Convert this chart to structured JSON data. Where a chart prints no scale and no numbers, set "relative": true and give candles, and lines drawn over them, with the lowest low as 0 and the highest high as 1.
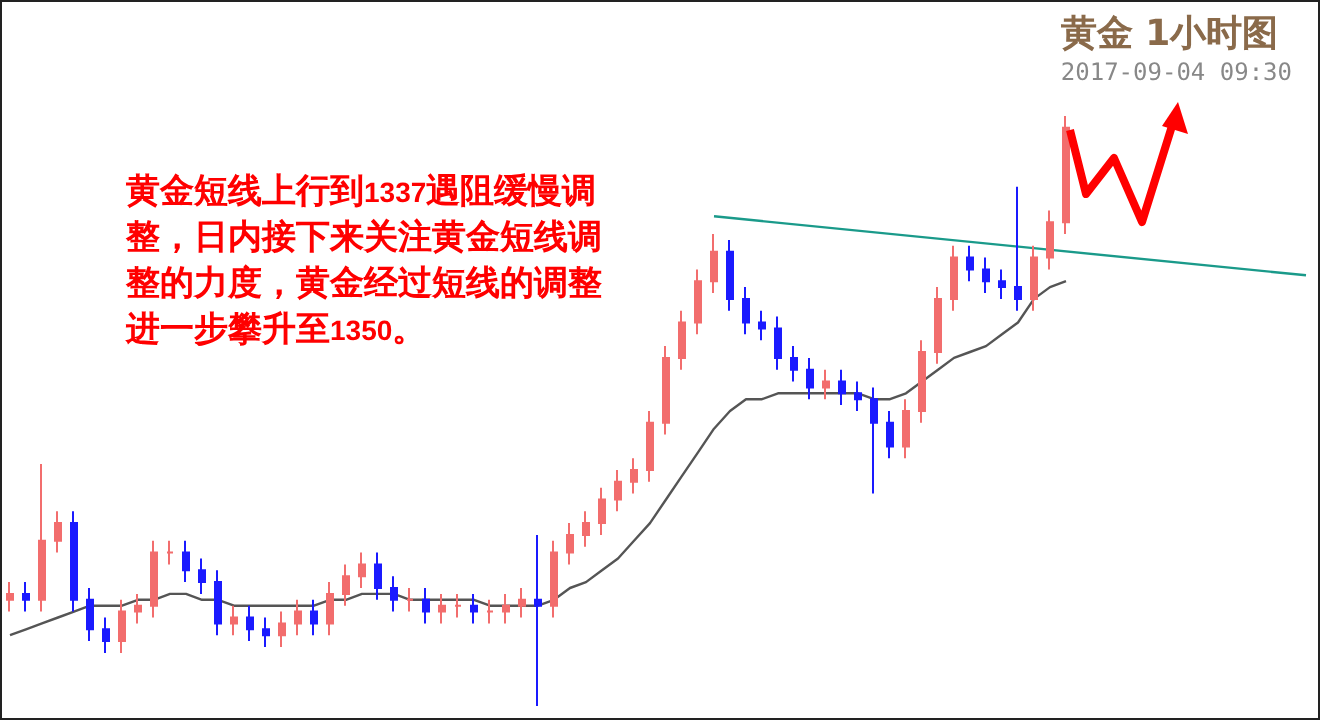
{
  "chart_data": {
    "type": "candlestick",
    "title": "黄金 1小时图",
    "subtitle": "2017-09-04 09:30",
    "relative": true,
    "annotations": [
      "黄金短线上行到1337遇阻缓慢调整，日内接下来关注黄金短线调整的力度，黄金经过短线的调整进一步攀升至1350。"
    ],
    "categories": [
      null,
      null,
      null,
      null,
      null,
      null,
      null,
      null,
      null,
      null,
      null,
      null,
      null,
      null,
      null,
      null,
      null,
      null,
      null,
      null,
      null,
      null,
      null,
      null,
      null,
      null,
      null,
      null,
      null,
      null,
      null,
      null,
      null,
      null,
      null,
      null,
      null,
      null,
      null,
      null,
      null,
      null,
      null,
      null,
      null,
      null,
      null,
      null,
      null,
      null,
      null,
      null,
      null,
      null,
      null,
      null,
      null,
      null,
      null,
      null,
      null,
      null,
      null,
      null,
      null,
      null,
      null,
      null,
      null,
      null,
      null,
      null,
      null,
      null,
      null,
      null,
      null,
      null,
      null,
      null,
      null,
      null
    ],
    "ohlc": [
      [
        0.18,
        0.21,
        0.16,
        0.19
      ],
      [
        0.19,
        0.21,
        0.16,
        0.18
      ],
      [
        0.18,
        0.41,
        0.16,
        0.28
      ],
      [
        0.28,
        0.33,
        0.26,
        0.31
      ],
      [
        0.31,
        0.33,
        0.16,
        0.18
      ],
      [
        0.18,
        0.2,
        0.11,
        0.13
      ],
      [
        0.13,
        0.15,
        0.09,
        0.11
      ],
      [
        0.11,
        0.18,
        0.09,
        0.16
      ],
      [
        0.16,
        0.19,
        0.14,
        0.17
      ],
      [
        0.17,
        0.28,
        0.15,
        0.26
      ],
      [
        0.26,
        0.28,
        0.24,
        0.26
      ],
      [
        0.26,
        0.28,
        0.21,
        0.23
      ],
      [
        0.23,
        0.25,
        0.19,
        0.21
      ],
      [
        0.21,
        0.23,
        0.12,
        0.14
      ],
      [
        0.14,
        0.17,
        0.12,
        0.15
      ],
      [
        0.15,
        0.17,
        0.11,
        0.13
      ],
      [
        0.13,
        0.15,
        0.1,
        0.12
      ],
      [
        0.12,
        0.16,
        0.1,
        0.14
      ],
      [
        0.14,
        0.18,
        0.12,
        0.16
      ],
      [
        0.16,
        0.18,
        0.12,
        0.14
      ],
      [
        0.14,
        0.21,
        0.12,
        0.19
      ],
      [
        0.19,
        0.24,
        0.17,
        0.22
      ],
      [
        0.22,
        0.26,
        0.2,
        0.24
      ],
      [
        0.24,
        0.26,
        0.18,
        0.2
      ],
      [
        0.2,
        0.22,
        0.16,
        0.18
      ],
      [
        0.18,
        0.2,
        0.16,
        0.18
      ],
      [
        0.18,
        0.2,
        0.14,
        0.16
      ],
      [
        0.16,
        0.19,
        0.14,
        0.17
      ],
      [
        0.17,
        0.19,
        0.15,
        0.17
      ],
      [
        0.17,
        0.19,
        0.14,
        0.16
      ],
      [
        0.16,
        0.18,
        0.14,
        0.16
      ],
      [
        0.16,
        0.19,
        0.14,
        0.17
      ],
      [
        0.17,
        0.2,
        0.15,
        0.18
      ],
      [
        0.18,
        0.29,
        0,
        0.17
      ],
      [
        0.17,
        0.28,
        0.15,
        0.26
      ],
      [
        0.26,
        0.31,
        0.24,
        0.29
      ],
      [
        0.29,
        0.33,
        0.27,
        0.31
      ],
      [
        0.31,
        0.37,
        0.29,
        0.35
      ],
      [
        0.35,
        0.4,
        0.33,
        0.38
      ],
      [
        0.38,
        0.42,
        0.36,
        0.4
      ],
      [
        0.4,
        0.5,
        0.38,
        0.48
      ],
      [
        0.48,
        0.61,
        0.46,
        0.59
      ],
      [
        0.59,
        0.67,
        0.57,
        0.65
      ],
      [
        0.65,
        0.74,
        0.63,
        0.72
      ],
      [
        0.72,
        0.8,
        0.7,
        0.77
      ],
      [
        0.77,
        0.79,
        0.67,
        0.69
      ],
      [
        0.69,
        0.71,
        0.63,
        0.65
      ],
      [
        0.65,
        0.67,
        0.62,
        0.64
      ],
      [
        0.64,
        0.66,
        0.57,
        0.59
      ],
      [
        0.59,
        0.61,
        0.55,
        0.57
      ],
      [
        0.57,
        0.59,
        0.52,
        0.54
      ],
      [
        0.54,
        0.57,
        0.52,
        0.55
      ],
      [
        0.55,
        0.57,
        0.51,
        0.53
      ],
      [
        0.53,
        0.55,
        0.5,
        0.52
      ],
      [
        0.52,
        0.54,
        0.36,
        0.48
      ],
      [
        0.48,
        0.5,
        0.42,
        0.44
      ],
      [
        0.44,
        0.52,
        0.42,
        0.5
      ],
      [
        0.5,
        0.62,
        0.48,
        0.6
      ],
      [
        0.6,
        0.71,
        0.58,
        0.69
      ],
      [
        0.69,
        0.78,
        0.67,
        0.76
      ],
      [
        0.76,
        0.78,
        0.72,
        0.74
      ],
      [
        0.74,
        0.76,
        0.7,
        0.72
      ],
      [
        0.72,
        0.74,
        0.69,
        0.71
      ],
      [
        0.71,
        0.88,
        0.67,
        0.69
      ],
      [
        0.69,
        0.78,
        0.67,
        0.76
      ],
      [
        0.76,
        0.84,
        0.74,
        0.82
      ],
      [
        0.82,
        1,
        0.8,
        0.98
      ],
      null,
      null,
      null,
      null,
      null,
      null,
      null,
      null,
      null,
      null,
      null,
      null,
      null,
      null,
      null
    ],
    "colors": [
      "#f26d6d",
      "#1a1aff",
      "#f26d6d",
      "#f26d6d",
      "#1a1aff",
      "#1a1aff",
      "#1a1aff",
      "#f26d6d",
      "#f26d6d",
      "#f26d6d",
      "#f26d6d",
      "#1a1aff",
      "#1a1aff",
      "#1a1aff",
      "#f26d6d",
      "#1a1aff",
      "#1a1aff",
      "#f26d6d",
      "#f26d6d",
      "#1a1aff",
      "#f26d6d",
      "#f26d6d",
      "#f26d6d",
      "#1a1aff",
      "#1a1aff",
      "#f26d6d",
      "#1a1aff",
      "#f26d6d",
      "#f26d6d",
      "#1a1aff",
      "#f26d6d",
      "#f26d6d",
      "#f26d6d",
      "#1a1aff",
      "#f26d6d",
      "#f26d6d",
      "#f26d6d",
      "#f26d6d",
      "#f26d6d",
      "#f26d6d",
      "#f26d6d",
      "#f26d6d",
      "#f26d6d",
      "#f26d6d",
      "#f26d6d",
      "#1a1aff",
      "#1a1aff",
      "#1a1aff",
      "#1a1aff",
      "#1a1aff",
      "#1a1aff",
      "#f26d6d",
      "#1a1aff",
      "#1a1aff",
      "#1a1aff",
      "#1a1aff",
      "#f26d6d",
      "#f26d6d",
      "#f26d6d",
      "#f26d6d",
      "#1a1aff",
      "#1a1aff",
      "#1a1aff",
      "#1a1aff",
      "#f26d6d",
      "#f26d6d",
      "#f26d6d",
      null,
      null,
      null,
      null,
      null,
      null,
      null,
      null,
      null,
      null,
      null,
      null,
      null,
      null,
      null
    ],
    "series": [
      {
        "type": "line",
        "color": "#555555",
        "values": [
          0.12,
          0.13,
          0.14,
          0.15,
          0.16,
          0.17,
          0.17,
          0.17,
          0.18,
          0.18,
          0.19,
          0.19,
          0.18,
          0.18,
          0.17,
          0.17,
          0.17,
          0.17,
          0.17,
          0.17,
          0.18,
          0.18,
          0.19,
          0.19,
          0.19,
          0.18,
          0.18,
          0.18,
          0.18,
          0.18,
          0.17,
          0.17,
          0.17,
          0.17,
          0.18,
          0.2,
          0.21,
          0.23,
          0.25,
          0.28,
          0.31,
          0.35,
          0.39,
          0.43,
          0.47,
          0.5,
          0.52,
          0.52,
          0.53,
          0.53,
          0.53,
          0.53,
          0.53,
          0.53,
          0.52,
          0.52,
          0.53,
          0.55,
          0.57,
          0.59,
          0.6,
          0.61,
          0.63,
          0.65,
          0.69,
          0.71,
          0.72,
          null,
          null,
          null,
          null,
          null,
          null,
          null,
          null,
          null,
          null,
          null,
          null,
          null,
          null,
          null
        ]
      },
      {
        "type": "line",
        "color": "#1a9a8a",
        "values": [
          null,
          null,
          null,
          null,
          null,
          null,
          null,
          null,
          null,
          null,
          null,
          null,
          null,
          null,
          null,
          null,
          null,
          null,
          null,
          null,
          null,
          null,
          null,
          null,
          null,
          null,
          null,
          null,
          null,
          null,
          null,
          null,
          null,
          null,
          null,
          null,
          null,
          null,
          null,
          null,
          null,
          null,
          null,
          null,
          0.83,
          null,
          null,
          null,
          null,
          null,
          null,
          null,
          null,
          null,
          null,
          null,
          null,
          null,
          null,
          null,
          null,
          null,
          null,
          null,
          null,
          null,
          null,
          null,
          null,
          null,
          null,
          null,
          null,
          null,
          null,
          null,
          null,
          null,
          null,
          null,
          null,
          0.73
        ]
      }
    ]
  }
}
